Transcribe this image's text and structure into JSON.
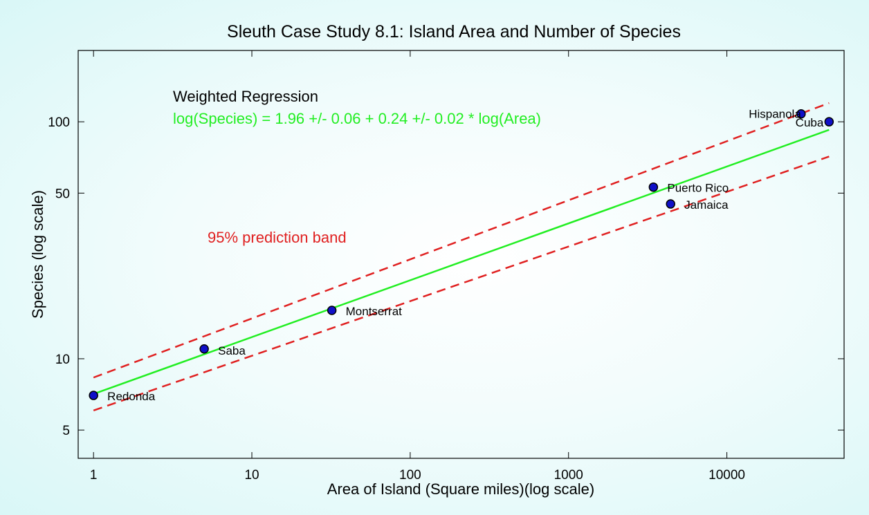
{
  "colors": {
    "fit_line": "#22ee22",
    "band": "#e02020",
    "point_fill": "#1010c8",
    "point_edge": "#000000",
    "regression_text_heading": "#000000",
    "regression_text_eq": "#22ee22",
    "band_label": "#e02020"
  },
  "chart_data": {
    "type": "scatter",
    "title": "Sleuth Case Study 8.1: Island Area and Number of Species",
    "xlabel": "Area of Island (Square miles)(log scale)",
    "ylabel": "Species (log scale)",
    "xscale": "log",
    "yscale": "log",
    "xlim": [
      0.8,
      55000
    ],
    "ylim": [
      3.8,
      200
    ],
    "xticks": [
      1,
      10,
      100,
      1000,
      10000
    ],
    "xtick_labels": [
      "1",
      "10",
      "100",
      "1000",
      "10000"
    ],
    "yticks": [
      5,
      10,
      50,
      100
    ],
    "ytick_labels": [
      "5",
      "10",
      "50",
      "100"
    ],
    "grid": false,
    "points": [
      {
        "name": "Redonda",
        "x": 1,
        "y": 7
      },
      {
        "name": "Saba",
        "x": 5,
        "y": 11
      },
      {
        "name": "Montserrat",
        "x": 32,
        "y": 16
      },
      {
        "name": "Puerto Rico",
        "x": 3435,
        "y": 53
      },
      {
        "name": "Jamaica",
        "x": 4411,
        "y": 45
      },
      {
        "name": "Hispanola",
        "x": 29418,
        "y": 108
      },
      {
        "name": "Cuba",
        "x": 44218,
        "y": 100
      }
    ],
    "fit": {
      "intercept": 1.96,
      "slope": 0.24,
      "x_range": [
        1,
        44218
      ]
    },
    "band": {
      "label": "95% prediction band",
      "log_offset_start": 0.16,
      "log_offset_end": 0.26
    },
    "annotations": {
      "heading": "Weighted Regression",
      "equation": "log(Species) = 1.96 +/- 0.06 + 0.24 +/- 0.02 * log(Area)",
      "band_label": "95% prediction band"
    }
  }
}
